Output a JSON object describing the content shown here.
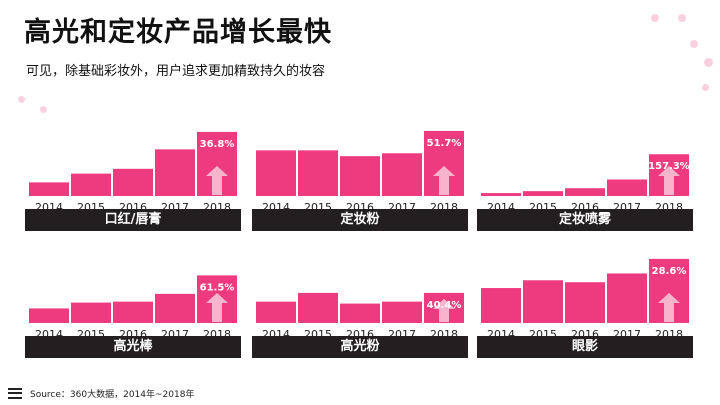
{
  "title": "高光和定妆产品增长最快",
  "subtitle": "可见，除基础彩妆外，用户追求更加精致持久的妆容",
  "source": "Source：360大数据，2014年~2018年",
  "colors": {
    "bar": "#ee3b7f",
    "label_bg": "#231f20",
    "arrow": "#f9c2d6"
  },
  "chart_data": [
    {
      "type": "bar",
      "title": "口红/唇膏",
      "categories": [
        "2014",
        "2015",
        "2016",
        "2017",
        "2018"
      ],
      "values": [
        14,
        23,
        28,
        48,
        66
      ],
      "annotation": "36.8%"
    },
    {
      "type": "bar",
      "title": "定妆粉",
      "categories": [
        "2014",
        "2015",
        "2016",
        "2017",
        "2018"
      ],
      "values": [
        47,
        47,
        41,
        44,
        67
      ],
      "annotation": "51.7%"
    },
    {
      "type": "bar",
      "title": "定妆喷雾",
      "categories": [
        "2014",
        "2015",
        "2016",
        "2017",
        "2018"
      ],
      "values": [
        3,
        5,
        8,
        17,
        43
      ],
      "annotation": "157.3%"
    },
    {
      "type": "bar",
      "title": "高光棒",
      "categories": [
        "2014",
        "2015",
        "2016",
        "2017",
        "2018"
      ],
      "values": [
        15,
        21,
        22,
        30,
        49
      ],
      "annotation": "61.5%"
    },
    {
      "type": "bar",
      "title": "高光粉",
      "categories": [
        "2014",
        "2015",
        "2016",
        "2017",
        "2018"
      ],
      "values": [
        22,
        31,
        20,
        22,
        31
      ],
      "annotation": "40.4%"
    },
    {
      "type": "bar",
      "title": "眼影",
      "categories": [
        "2014",
        "2015",
        "2016",
        "2017",
        "2018"
      ],
      "values": [
        36,
        44,
        42,
        51,
        66
      ],
      "annotation": "28.6%"
    }
  ]
}
